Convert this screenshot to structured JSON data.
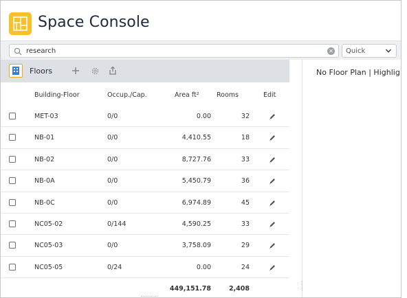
{
  "app": {
    "title": "Space Console",
    "icon": "floor-plan-icon",
    "accent": "#f6c12b"
  },
  "search": {
    "value": "research",
    "mode": "Quick"
  },
  "floors_panel": {
    "label": "Floors",
    "actions": [
      "add-icon",
      "settings-icon",
      "export-icon"
    ]
  },
  "floor_plan": {
    "message": "No Floor Plan | Highlig"
  },
  "table": {
    "headers": {
      "building_floor": "Building-Floor",
      "occupancy": "Occup./Cap.",
      "area": "Area ft²",
      "rooms": "Rooms",
      "edit": "Edit"
    },
    "rows": [
      {
        "building_floor": "MET-03",
        "occupancy": "0/0",
        "area": "0.00",
        "rooms": "32"
      },
      {
        "building_floor": "NB-01",
        "occupancy": "0/0",
        "area": "4,410.55",
        "rooms": "18"
      },
      {
        "building_floor": "NB-02",
        "occupancy": "0/0",
        "area": "8,727.76",
        "rooms": "33"
      },
      {
        "building_floor": "NB-0A",
        "occupancy": "0/0",
        "area": "5,450.79",
        "rooms": "36"
      },
      {
        "building_floor": "NB-0C",
        "occupancy": "0/0",
        "area": "6,974.89",
        "rooms": "45"
      },
      {
        "building_floor": "NC05-02",
        "occupancy": "0/144",
        "area": "4,590.25",
        "rooms": "33"
      },
      {
        "building_floor": "NC05-03",
        "occupancy": "0/0",
        "area": "3,758.09",
        "rooms": "29"
      },
      {
        "building_floor": "NC05-05",
        "occupancy": "0/24",
        "area": "0.00",
        "rooms": "24"
      }
    ],
    "totals": {
      "area": "449,151.78",
      "rooms": "2,408"
    }
  }
}
